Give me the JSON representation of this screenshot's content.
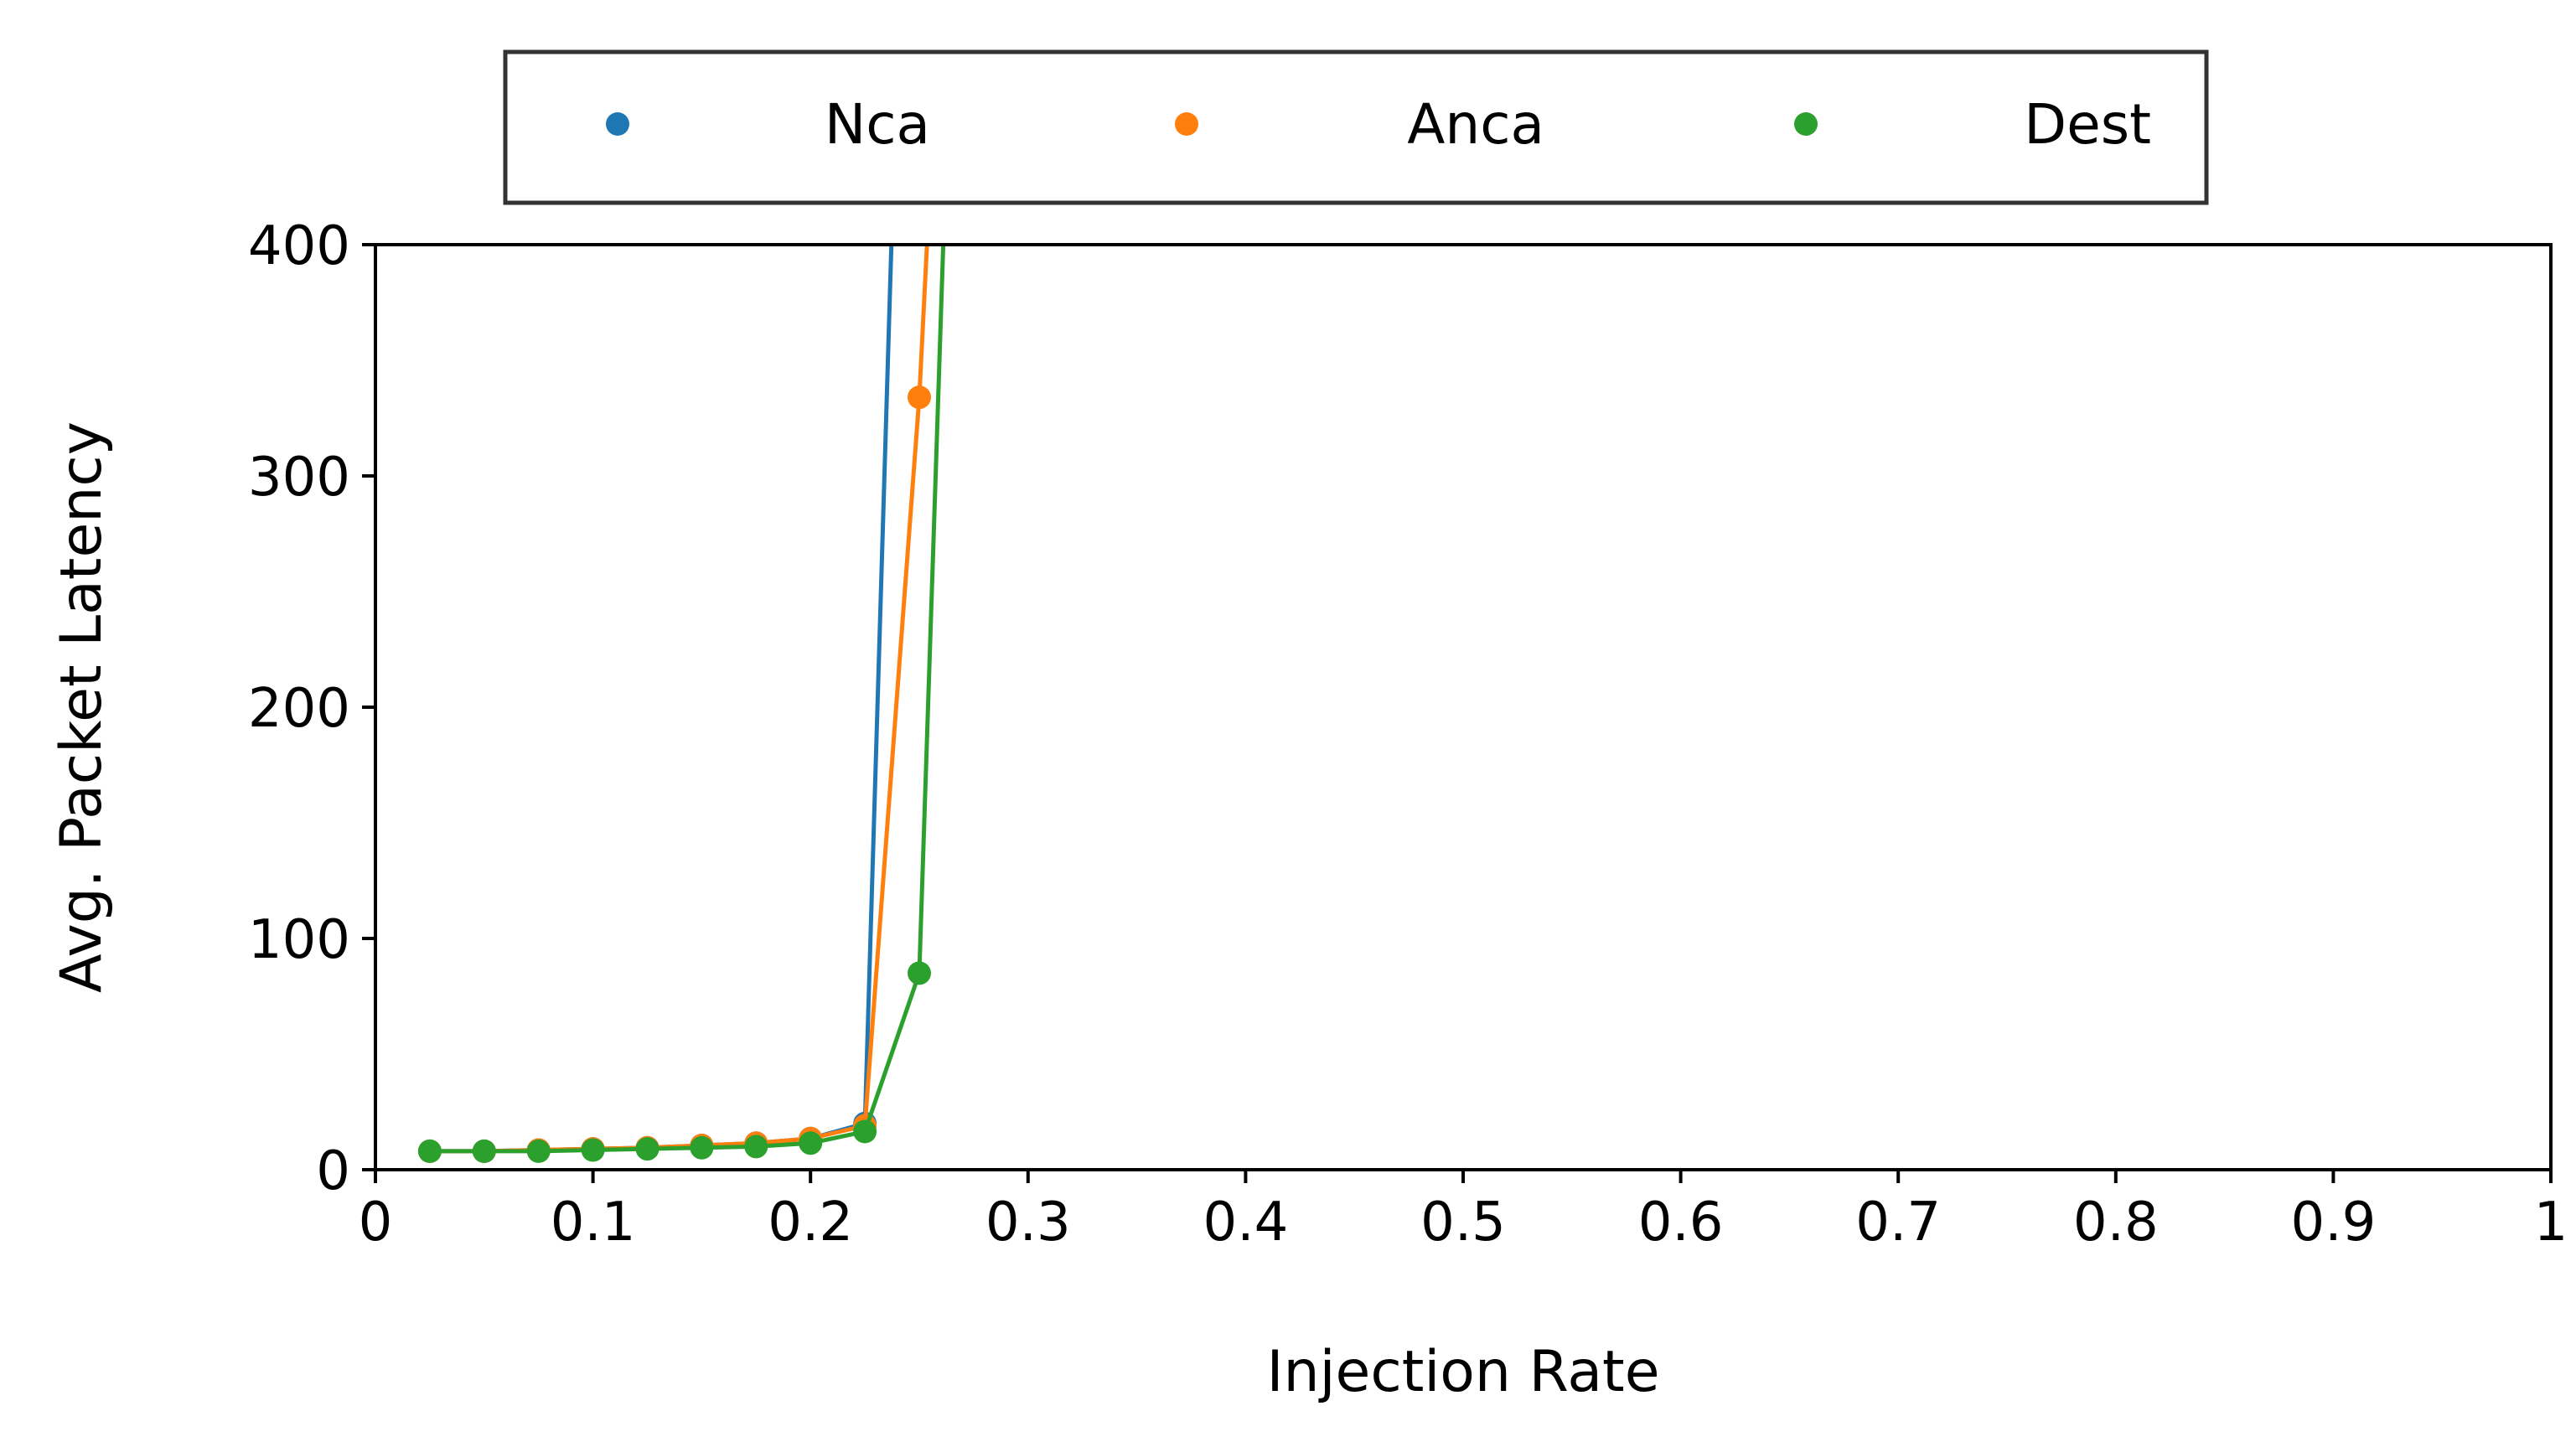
{
  "chart_data": {
    "type": "line",
    "title": "",
    "xlabel": "Injection Rate",
    "ylabel": "Avg. Packet Latency",
    "xlim": [
      0,
      1
    ],
    "ylim": [
      0,
      400
    ],
    "xticks": [
      0,
      0.1,
      0.2,
      0.3,
      0.4,
      0.5,
      0.6,
      0.7,
      0.8,
      0.9,
      1
    ],
    "xtick_labels": [
      "0",
      "0.1",
      "0.2",
      "0.3",
      "0.4",
      "0.5",
      "0.6",
      "0.7",
      "0.8",
      "0.9",
      "1"
    ],
    "yticks": [
      0,
      100,
      200,
      300,
      400
    ],
    "ytick_labels": [
      "0",
      "100",
      "200",
      "300",
      "400"
    ],
    "grid": false,
    "legend_position": "top-center",
    "series": [
      {
        "name": "Nca",
        "color": "#1f77b4",
        "x": [
          0.025,
          0.05,
          0.075,
          0.1,
          0.125,
          0.15,
          0.175,
          0.2,
          0.225,
          0.25
        ],
        "y": [
          8,
          8,
          8.5,
          9,
          9.5,
          10.5,
          11.5,
          13.5,
          20,
          800
        ]
      },
      {
        "name": "Anca",
        "color": "#ff7f0e",
        "x": [
          0.025,
          0.05,
          0.075,
          0.1,
          0.125,
          0.15,
          0.175,
          0.2,
          0.225,
          0.25,
          0.275
        ],
        "y": [
          8,
          8,
          8.5,
          9,
          9.5,
          10.5,
          11.5,
          13.5,
          19,
          334,
          800
        ]
      },
      {
        "name": "Dest",
        "color": "#2ca02c",
        "x": [
          0.025,
          0.05,
          0.075,
          0.1,
          0.125,
          0.15,
          0.175,
          0.2,
          0.225,
          0.25,
          0.275
        ],
        "y": [
          8,
          8,
          8,
          8.5,
          9,
          9.5,
          10,
          11.5,
          16.5,
          85,
          800
        ]
      }
    ]
  }
}
